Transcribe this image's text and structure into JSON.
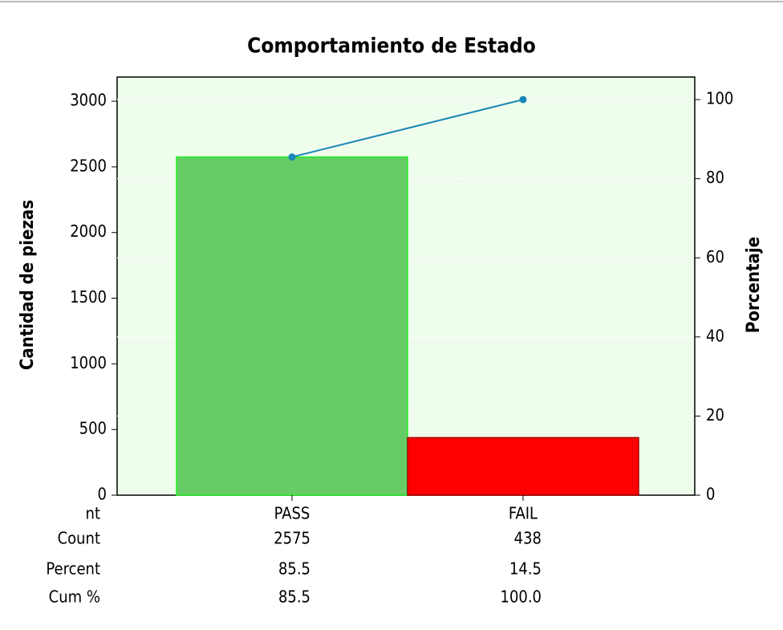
{
  "chart_data": {
    "type": "pareto",
    "title": "Comportamiento de Estado",
    "y_label": "Cantidad de piezas",
    "y2_label": "Porcentaje",
    "x_label": "nt",
    "categories": [
      "PASS",
      "FAIL"
    ],
    "series": [
      {
        "name": "Count",
        "values": [
          2575,
          438
        ],
        "colors": [
          "#66cc66",
          "#ff0000"
        ],
        "edge_colors": [
          "#22ee22",
          "#a00000"
        ]
      },
      {
        "name": "Percent",
        "values": [
          85.5,
          14.5
        ]
      },
      {
        "name": "Cum %",
        "values": [
          85.5,
          100
        ],
        "value_labels": [
          "85.5",
          "100.0"
        ],
        "axis": "y2",
        "color": "#1a86b8"
      }
    ],
    "ylim": [
      0,
      3184
    ],
    "yticks": [
      0,
      500,
      1000,
      1500,
      2000,
      2500,
      3000
    ],
    "y2lim": [
      0,
      105.7
    ],
    "y2ticks": [
      0,
      20,
      40,
      60,
      80,
      100
    ],
    "grid": true
  }
}
